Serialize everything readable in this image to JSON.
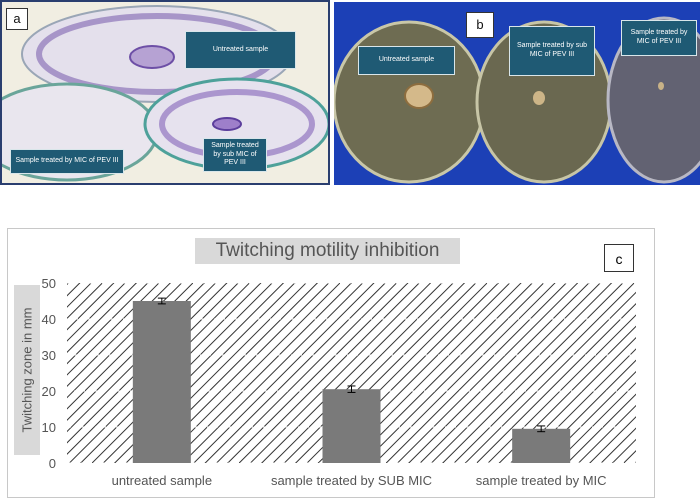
{
  "panel_a": {
    "label": "a",
    "tags": {
      "untreated": "Untreated sample",
      "mic": "Sample treated by MIC of PEV III",
      "sub_mic": "Sample treated by sub MIC of PEV III"
    }
  },
  "panel_b": {
    "label": "b",
    "tags": {
      "untreated": "Untreated sample",
      "sub_mic": "Sample treated by sub MIC of PEV III",
      "mic": "Sample treated by MIC of PEV III"
    }
  },
  "panel_c_label": "c",
  "chart_data": {
    "type": "bar",
    "title": "Twitching  motility inhibition",
    "xlabel": "",
    "ylabel": "Twitching  zone in mm",
    "categories": [
      "untreated sample",
      "sample treated by SUB MIC",
      "sample treated by  MIC"
    ],
    "values": [
      45,
      20.5,
      9.5
    ],
    "errors": [
      0.8,
      0.9,
      0.8
    ],
    "ylim": [
      0,
      50
    ],
    "yticks": [
      0,
      10,
      20,
      30,
      40,
      50
    ],
    "colors": {
      "bar": "#7a7a7a",
      "hatch": "#333333"
    }
  }
}
